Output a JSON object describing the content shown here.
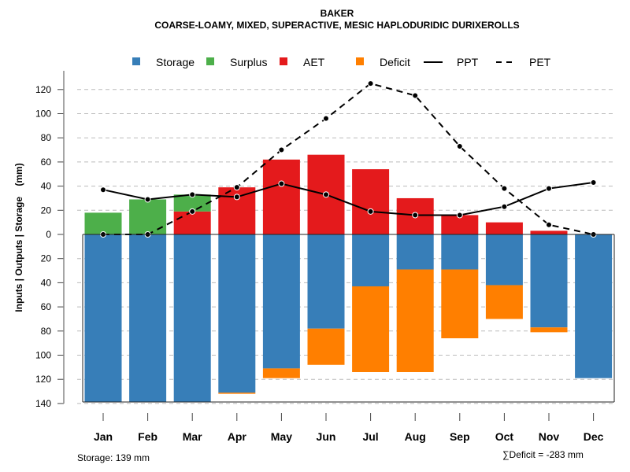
{
  "chart_data": {
    "type": "bar",
    "title": "BAKER",
    "subtitle": "COARSE-LOAMY, MIXED, SUPERACTIVE, MESIC HAPLODURIDIC DURIXEROLLS",
    "ylabel": "Inputs | Outputs | Storage    (mm)",
    "xlabel": "",
    "ylim": [
      -140,
      130
    ],
    "yticks": [
      -140,
      -120,
      -100,
      -80,
      -60,
      -40,
      -20,
      0,
      20,
      40,
      60,
      80,
      100,
      120
    ],
    "ytick_labels": [
      "140",
      "120",
      "100",
      "80",
      "60",
      "40",
      "20",
      "0",
      "20",
      "40",
      "60",
      "80",
      "100",
      "120"
    ],
    "grid": true,
    "legend_position": "top",
    "categories": [
      "Jan",
      "Feb",
      "Mar",
      "Apr",
      "May",
      "Jun",
      "Jul",
      "Aug",
      "Sep",
      "Oct",
      "Nov",
      "Dec"
    ],
    "legend": [
      {
        "name": "Storage",
        "kind": "box",
        "color": "#377eb8"
      },
      {
        "name": "Surplus",
        "kind": "box",
        "color": "#4daf4a"
      },
      {
        "name": "AET",
        "kind": "box",
        "color": "#e41a1c"
      },
      {
        "name": "Deficit",
        "kind": "box",
        "color": "#ff7f00"
      },
      {
        "name": "PPT",
        "kind": "solid-line",
        "color": "#000000"
      },
      {
        "name": "PET",
        "kind": "dashed-line",
        "color": "#000000"
      }
    ],
    "series": [
      {
        "name": "Storage",
        "kind": "bar-below",
        "color": "#377eb8",
        "values": [
          139,
          139,
          139,
          131,
          111,
          78,
          43,
          29,
          29,
          42,
          77,
          119
        ]
      },
      {
        "name": "Deficit",
        "kind": "bar-below-stacked",
        "color": "#ff7f00",
        "values": [
          0,
          0,
          0,
          1,
          8,
          30,
          71,
          85,
          57,
          28,
          4,
          0
        ]
      },
      {
        "name": "AET",
        "kind": "bar-above",
        "color": "#e41a1c",
        "values": [
          0,
          0,
          19,
          39,
          62,
          66,
          54,
          30,
          16,
          10,
          3,
          0
        ]
      },
      {
        "name": "Surplus",
        "kind": "bar-above-stacked",
        "color": "#4daf4a",
        "values": [
          18,
          29,
          14,
          0,
          0,
          0,
          0,
          0,
          0,
          0,
          0,
          0
        ]
      },
      {
        "name": "PPT",
        "kind": "line",
        "color": "#000000",
        "values": [
          37,
          29,
          33,
          31,
          42,
          33,
          19,
          16,
          16,
          23,
          38,
          43
        ]
      },
      {
        "name": "PET",
        "kind": "dashed-line",
        "color": "#000000",
        "values": [
          0,
          0,
          19,
          39,
          70,
          96,
          125,
          115,
          73,
          38,
          8,
          0
        ]
      }
    ],
    "annotations": {
      "storage_note": "Storage: 139 mm",
      "deficit_note": "∑Deficit = -283 mm"
    }
  }
}
